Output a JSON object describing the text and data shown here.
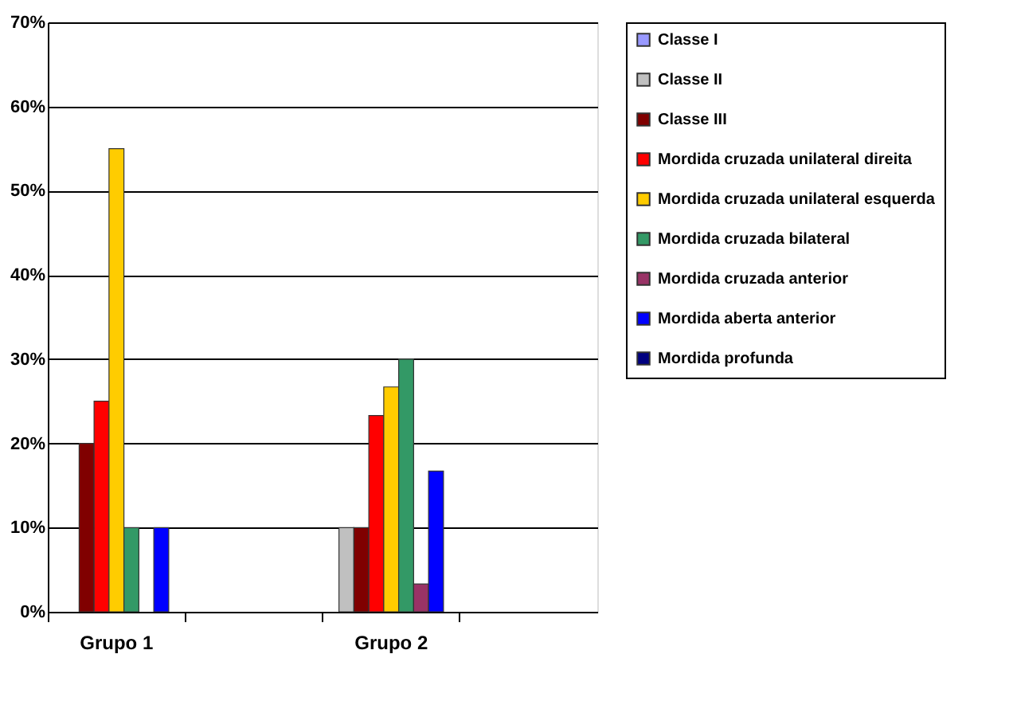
{
  "chart_data": {
    "type": "bar",
    "categories": [
      "Grupo 1",
      null,
      "Grupo 2",
      null
    ],
    "series": [
      {
        "name": "Classe I",
        "color": "#9999ff",
        "values": [
          null,
          null,
          null,
          null
        ]
      },
      {
        "name": "Classe II",
        "color": "#c0c0c0",
        "values": [
          null,
          null,
          10,
          null
        ]
      },
      {
        "name": "Classe III",
        "color": "#800000",
        "values": [
          20,
          null,
          10,
          null
        ]
      },
      {
        "name": "Mordida cruzada unilateral direita",
        "color": "#ff0000",
        "values": [
          25,
          null,
          23.3,
          null
        ]
      },
      {
        "name": "Mordida cruzada unilateral esquerda",
        "color": "#ffcc00",
        "values": [
          55,
          null,
          26.7,
          null
        ]
      },
      {
        "name": "Mordida cruzada bilateral",
        "color": "#339966",
        "values": [
          10,
          null,
          30,
          null
        ]
      },
      {
        "name": "Mordida cruzada anterior",
        "color": "#993366",
        "values": [
          null,
          null,
          3.3,
          null
        ]
      },
      {
        "name": "Mordida aberta anterior",
        "color": "#0000ff",
        "values": [
          10,
          null,
          16.7,
          null
        ]
      },
      {
        "name": "Mordida profunda",
        "color": "#000080",
        "values": [
          null,
          null,
          null,
          null
        ]
      }
    ],
    "ylim": [
      0,
      70
    ],
    "yticks": [
      {
        "value": 0,
        "label": "0%"
      },
      {
        "value": 10,
        "label": "10%"
      },
      {
        "value": 20,
        "label": "20%"
      },
      {
        "value": 30,
        "label": "30%"
      },
      {
        "value": 40,
        "label": "40%"
      },
      {
        "value": 50,
        "label": "50%"
      },
      {
        "value": 60,
        "label": "60%"
      },
      {
        "value": 70,
        "label": "70%"
      }
    ],
    "grid": "y",
    "legend": "right"
  }
}
